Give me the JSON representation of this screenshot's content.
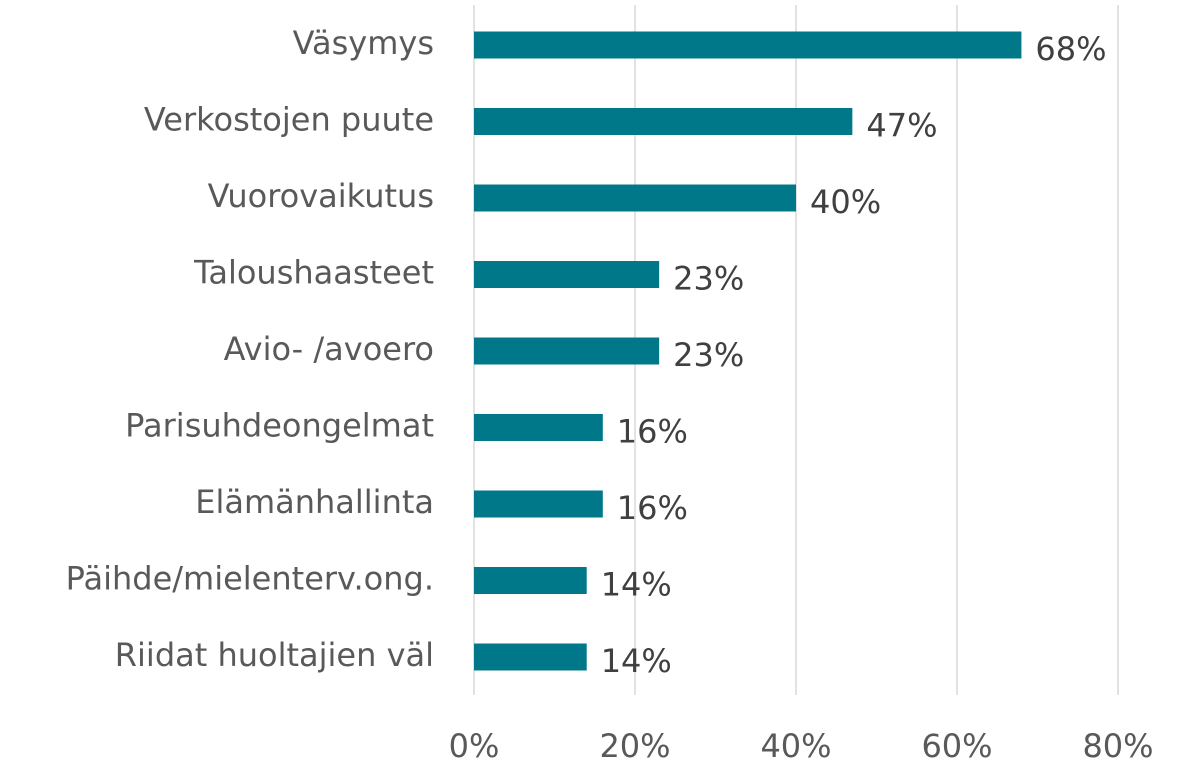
{
  "chart_data": {
    "type": "barh",
    "categories": [
      "Väsymys",
      "Verkostojen puute",
      "Vuorovaikutus",
      "Taloushaasteet",
      "Avio- /avoero",
      "Parisuhdeongelmat",
      "Elämänhallinta",
      "Päihde/mielenterv.ong.",
      "Riidat huoltajien väl"
    ],
    "values": [
      68,
      47,
      40,
      23,
      23,
      16,
      16,
      14,
      14
    ],
    "value_labels": [
      "68%",
      "47%",
      "40%",
      "23%",
      "23%",
      "16%",
      "16%",
      "14%",
      "14%"
    ],
    "color": "#00788a",
    "xlim": [
      0,
      80
    ],
    "xticks": [
      {
        "value": 0,
        "label": "0%"
      },
      {
        "value": 20,
        "label": "20%"
      },
      {
        "value": 40,
        "label": "40%"
      },
      {
        "value": 60,
        "label": "60%"
      },
      {
        "value": 80,
        "label": "80%"
      }
    ],
    "grid": true
  }
}
